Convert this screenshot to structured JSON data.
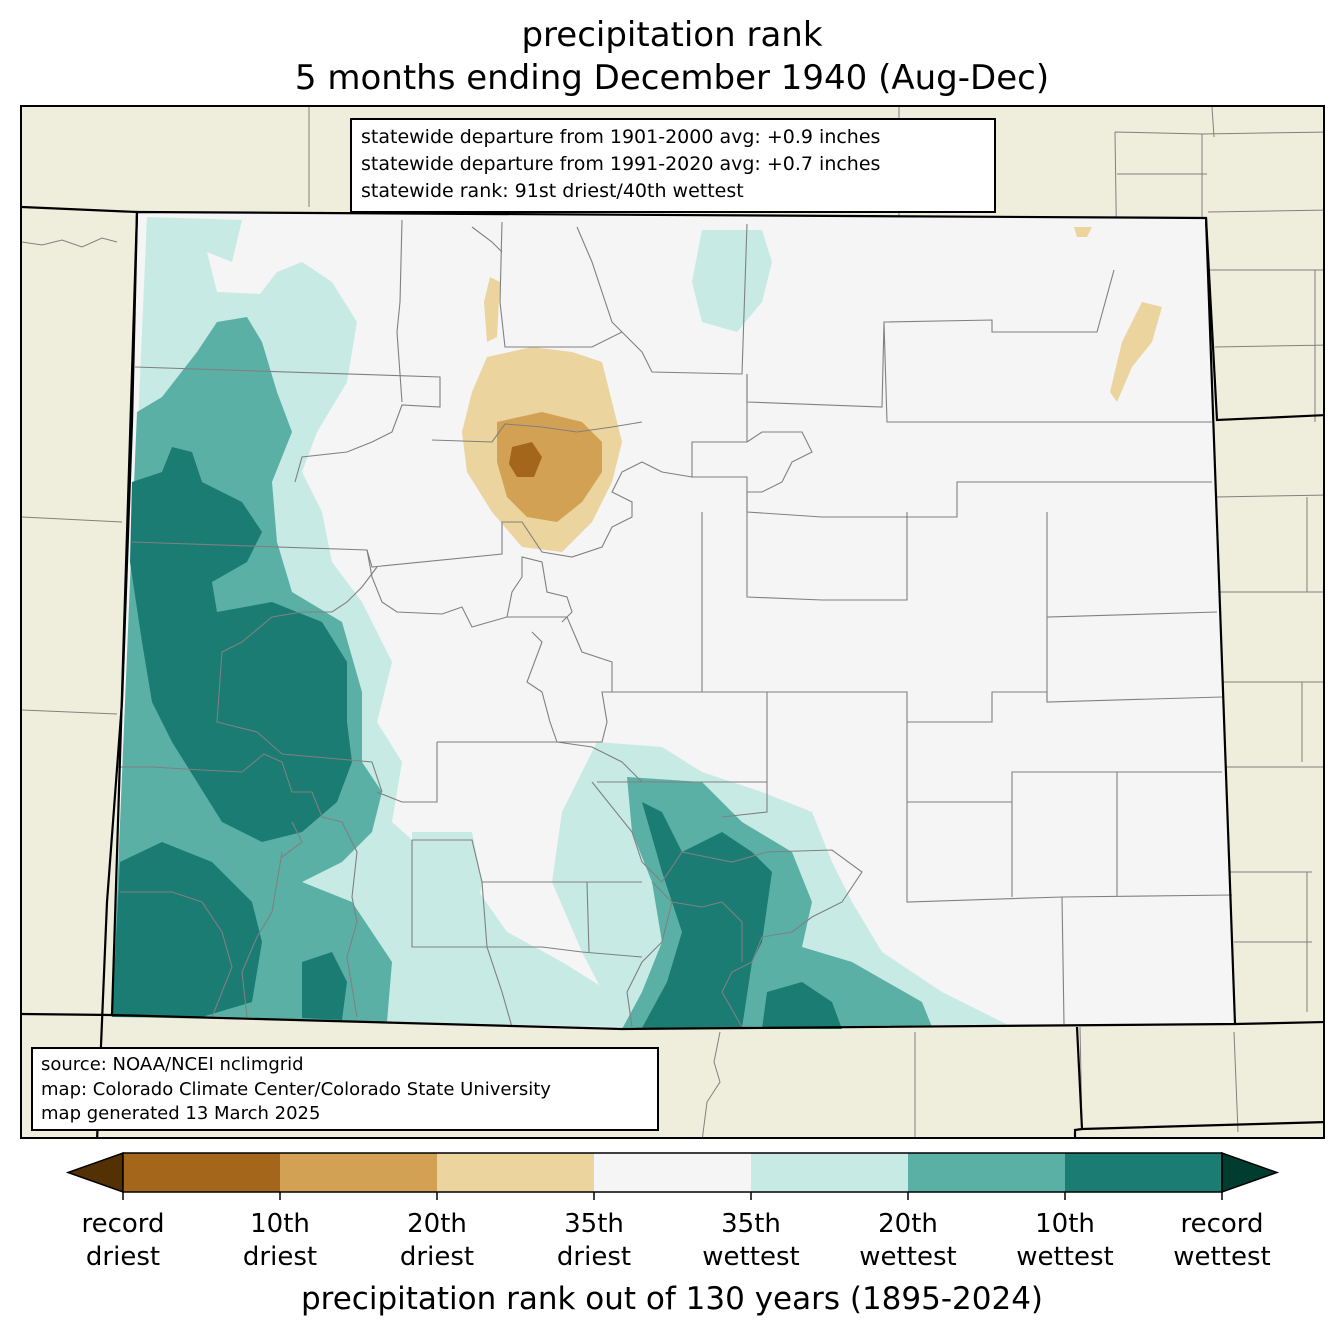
{
  "title": {
    "line1": "precipitation rank",
    "line2": "5 months ending December 1940 (Aug-Dec)"
  },
  "stats_box": {
    "line1": "statewide departure from 1901-2000 avg: +0.9 inches",
    "line2": "statewide departure from 1991-2020 avg: +0.7 inches",
    "line3": "statewide rank: 91st driest/40th wettest"
  },
  "source_box": {
    "line1": "source: NOAA/NCEI nclimgrid",
    "line2": "map: Colorado Climate Center/Colorado State University",
    "line3": "map generated 13 March 2025"
  },
  "colorbar": {
    "label": "precipitation rank out of 130 years (1895-2024)",
    "colors": {
      "record_driest_extend": "#543005",
      "driest_10": "#a3661b",
      "driest_20": "#d2a153",
      "driest_35": "#ebd49e",
      "neutral": "#f4f5f4",
      "wettest_35": "#c7eae5",
      "wettest_20": "#5bb0a6",
      "wettest_10": "#1a7c73",
      "record_wettest_extend": "#003c30"
    },
    "ticks": [
      {
        "line1": "record",
        "line2": "driest"
      },
      {
        "line1": "10th",
        "line2": "driest"
      },
      {
        "line1": "20th",
        "line2": "driest"
      },
      {
        "line1": "35th",
        "line2": "driest"
      },
      {
        "line1": "35th",
        "line2": "wettest"
      },
      {
        "line1": "20th",
        "line2": "wettest"
      },
      {
        "line1": "10th",
        "line2": "wettest"
      },
      {
        "line1": "record",
        "line2": "wettest"
      }
    ]
  },
  "map": {
    "background_color": "#efeedc",
    "state_fill": "#f4f5f4",
    "county_line_color": "#808080",
    "border_color": "#000000"
  }
}
